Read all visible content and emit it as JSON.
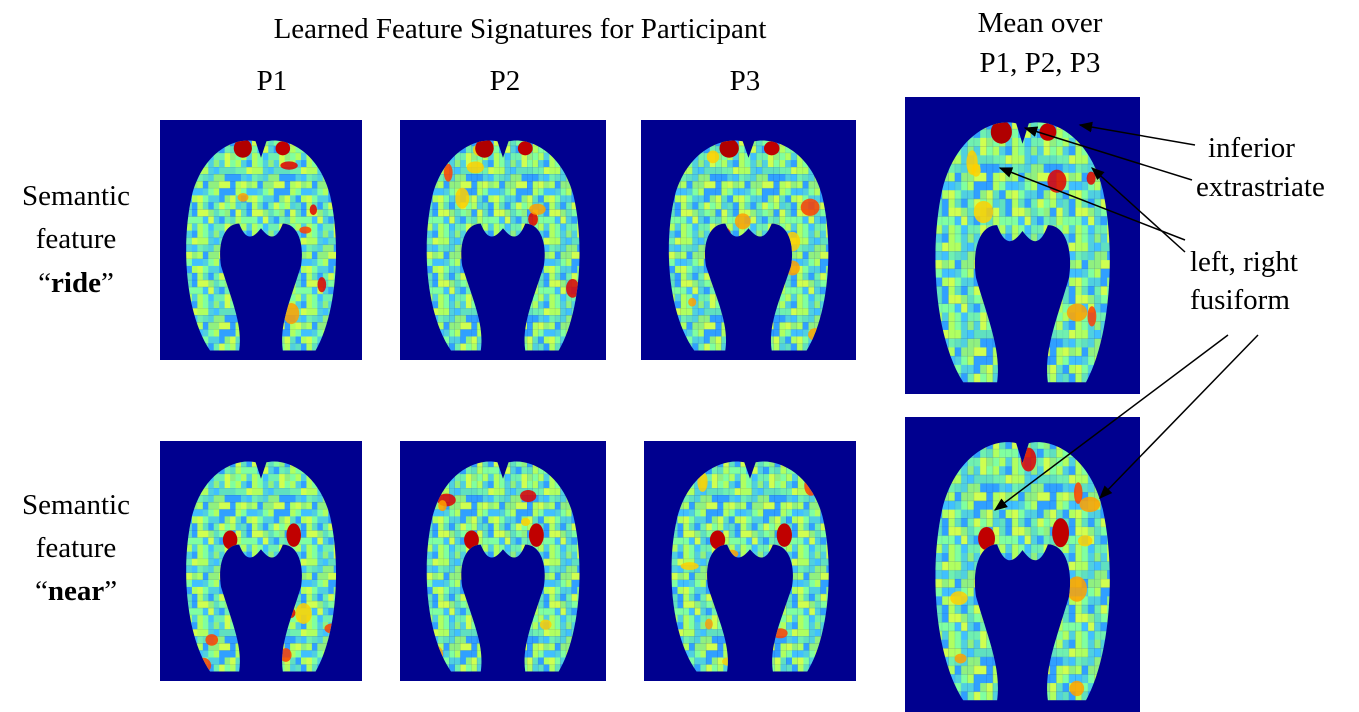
{
  "header": {
    "title": "Learned Feature Signatures for Participant"
  },
  "columns": [
    "P1",
    "P2",
    "P3"
  ],
  "mean_column": {
    "lines": [
      "Mean over",
      "P1, P2, P3"
    ]
  },
  "rows": [
    {
      "lines": [
        "Semantic",
        "feature"
      ],
      "open_quote": "“",
      "word": "ride",
      "close_quote": "”"
    },
    {
      "lines": [
        "Semantic",
        "feature"
      ],
      "open_quote": "“",
      "word": "near",
      "close_quote": "”"
    }
  ],
  "annotations": [
    {
      "lines": [
        "inferior",
        "extrastriate"
      ]
    },
    {
      "lines": [
        "left, right",
        "fusiform"
      ]
    }
  ]
}
